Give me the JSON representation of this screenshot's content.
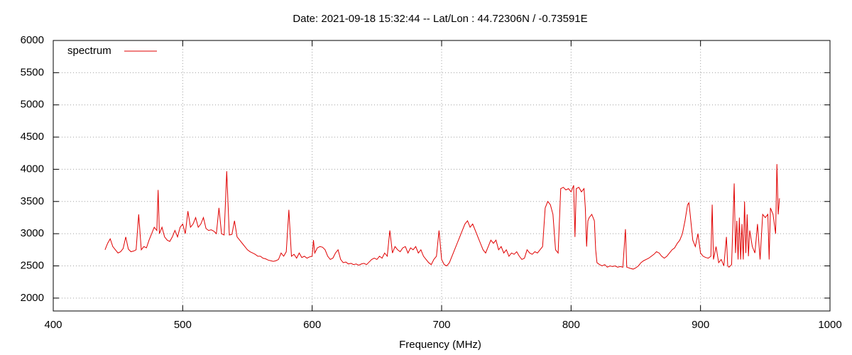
{
  "chart_data": {
    "type": "line",
    "title": "Date: 2021-09-18 15:32:44  --  Lat/Lon : 44.72306N / -0.73591E",
    "x_label": "Frequency (MHz)",
    "xlim": [
      400,
      1000
    ],
    "xticks": [
      400,
      500,
      600,
      700,
      800,
      900,
      1000
    ],
    "ylim": [
      1800,
      6000
    ],
    "yticks": [
      2000,
      2500,
      3000,
      3500,
      4000,
      4500,
      5000,
      5500,
      6000
    ],
    "grid": true,
    "legend": "top-left",
    "x": [
      440,
      442,
      444,
      446,
      448,
      450,
      452,
      454,
      456,
      458,
      460,
      462,
      464,
      466,
      468,
      470,
      472,
      474,
      476,
      478,
      480,
      481,
      482,
      484,
      486,
      488,
      490,
      492,
      494,
      496,
      498,
      500,
      502,
      504,
      506,
      508,
      510,
      512,
      514,
      516,
      518,
      520,
      522,
      524,
      526,
      528,
      530,
      532,
      534,
      536,
      538,
      540,
      542,
      544,
      546,
      548,
      550,
      552,
      554,
      556,
      558,
      560,
      562,
      564,
      566,
      568,
      570,
      572,
      574,
      576,
      578,
      580,
      582,
      584,
      586,
      588,
      590,
      592,
      594,
      596,
      598,
      600,
      601,
      602,
      604,
      606,
      608,
      610,
      612,
      614,
      616,
      618,
      620,
      622,
      624,
      626,
      628,
      630,
      632,
      634,
      636,
      638,
      640,
      642,
      644,
      646,
      648,
      650,
      652,
      654,
      656,
      658,
      660,
      662,
      664,
      666,
      668,
      670,
      672,
      674,
      676,
      678,
      680,
      682,
      684,
      686,
      688,
      690,
      692,
      694,
      696,
      698,
      700,
      702,
      704,
      706,
      708,
      710,
      712,
      714,
      716,
      718,
      720,
      722,
      724,
      726,
      728,
      730,
      732,
      734,
      736,
      738,
      740,
      742,
      744,
      746,
      748,
      750,
      752,
      754,
      756,
      758,
      760,
      762,
      764,
      766,
      768,
      770,
      772,
      774,
      776,
      778,
      780,
      782,
      784,
      786,
      788,
      790,
      792,
      794,
      796,
      798,
      800,
      802,
      803,
      804,
      806,
      808,
      810,
      811,
      812,
      813,
      814,
      816,
      818,
      819,
      820,
      822,
      824,
      826,
      828,
      830,
      832,
      834,
      836,
      838,
      840,
      842,
      843,
      846,
      848,
      850,
      852,
      854,
      856,
      858,
      860,
      862,
      864,
      866,
      868,
      870,
      872,
      874,
      876,
      878,
      880,
      882,
      884,
      886,
      888,
      890,
      891,
      892,
      894,
      896,
      898,
      900,
      902,
      904,
      906,
      908,
      909,
      910,
      912,
      914,
      916,
      918,
      920,
      921,
      922,
      924,
      926,
      927,
      928,
      929,
      930,
      931,
      932,
      933,
      934,
      935,
      936,
      937,
      938,
      940,
      942,
      944,
      946,
      948,
      950,
      952,
      953,
      954,
      956,
      958,
      959,
      960,
      961
    ],
    "series": [
      {
        "name": "spectrum",
        "color": "#e00000",
        "values": [
          2750,
          2850,
          2920,
          2800,
          2750,
          2700,
          2720,
          2770,
          2950,
          2760,
          2720,
          2730,
          2750,
          3300,
          2750,
          2800,
          2780,
          2900,
          3000,
          3100,
          3050,
          3680,
          3000,
          3100,
          2950,
          2900,
          2880,
          2950,
          3050,
          2950,
          3100,
          3150,
          3000,
          3350,
          3100,
          3150,
          3250,
          3100,
          3150,
          3250,
          3080,
          3050,
          3060,
          3040,
          3000,
          3400,
          3000,
          2980,
          3970,
          2980,
          2990,
          3200,
          2950,
          2900,
          2850,
          2800,
          2750,
          2720,
          2700,
          2680,
          2650,
          2650,
          2620,
          2610,
          2590,
          2580,
          2570,
          2580,
          2600,
          2700,
          2650,
          2720,
          3370,
          2650,
          2680,
          2620,
          2700,
          2630,
          2650,
          2620,
          2640,
          2650,
          2900,
          2700,
          2780,
          2800,
          2790,
          2750,
          2650,
          2600,
          2620,
          2700,
          2750,
          2600,
          2550,
          2560,
          2530,
          2540,
          2520,
          2530,
          2510,
          2530,
          2540,
          2520,
          2560,
          2600,
          2620,
          2600,
          2650,
          2620,
          2700,
          2650,
          3050,
          2700,
          2800,
          2750,
          2720,
          2780,
          2800,
          2700,
          2780,
          2750,
          2800,
          2700,
          2750,
          2650,
          2600,
          2550,
          2520,
          2600,
          2650,
          3050,
          2600,
          2520,
          2500,
          2550,
          2650,
          2750,
          2850,
          2950,
          3050,
          3150,
          3200,
          3100,
          3150,
          3050,
          2950,
          2850,
          2750,
          2700,
          2800,
          2900,
          2850,
          2900,
          2750,
          2800,
          2700,
          2750,
          2650,
          2700,
          2680,
          2720,
          2650,
          2600,
          2620,
          2750,
          2700,
          2680,
          2720,
          2700,
          2750,
          2800,
          3400,
          3500,
          3450,
          3300,
          2750,
          2700,
          3700,
          3720,
          3680,
          3700,
          3650,
          3750,
          2950,
          3700,
          3720,
          3650,
          3700,
          3400,
          2800,
          3200,
          3250,
          3300,
          3200,
          2750,
          2550,
          2520,
          2500,
          2520,
          2480,
          2500,
          2490,
          2500,
          2480,
          2490,
          2480,
          3070,
          2480,
          2460,
          2450,
          2470,
          2500,
          2550,
          2580,
          2600,
          2620,
          2650,
          2680,
          2720,
          2700,
          2650,
          2620,
          2650,
          2700,
          2750,
          2780,
          2850,
          2900,
          3000,
          3200,
          3450,
          3480,
          3300,
          2900,
          2800,
          3000,
          2700,
          2650,
          2630,
          2620,
          2650,
          3450,
          2600,
          2800,
          2550,
          2600,
          2500,
          2950,
          2500,
          2480,
          2520,
          3780,
          2700,
          3200,
          2600,
          3250,
          2600,
          3150,
          2600,
          3500,
          2700,
          3300,
          2650,
          3050,
          2800,
          2700,
          3150,
          2600,
          3300,
          3250,
          3300,
          2600,
          3400,
          3300,
          3000,
          4080,
          3300,
          3550
        ]
      }
    ]
  }
}
